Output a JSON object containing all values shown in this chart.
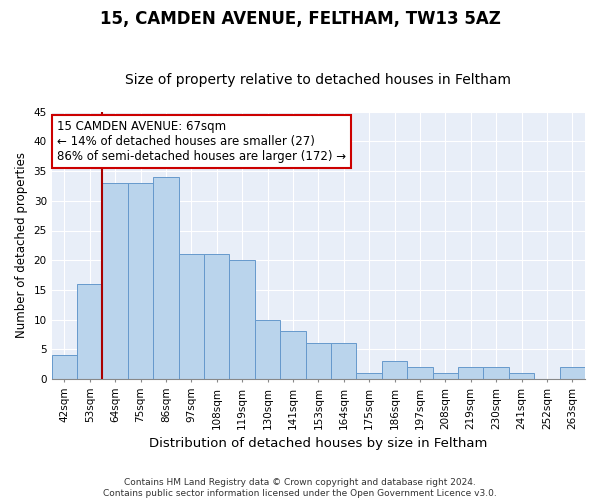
{
  "title": "15, CAMDEN AVENUE, FELTHAM, TW13 5AZ",
  "subtitle": "Size of property relative to detached houses in Feltham",
  "xlabel": "Distribution of detached houses by size in Feltham",
  "ylabel": "Number of detached properties",
  "categories": [
    "42sqm",
    "53sqm",
    "64sqm",
    "75sqm",
    "86sqm",
    "97sqm",
    "108sqm",
    "119sqm",
    "130sqm",
    "141sqm",
    "153sqm",
    "164sqm",
    "175sqm",
    "186sqm",
    "197sqm",
    "208sqm",
    "219sqm",
    "230sqm",
    "241sqm",
    "252sqm",
    "263sqm"
  ],
  "values": [
    4,
    16,
    33,
    33,
    34,
    21,
    21,
    20,
    10,
    8,
    6,
    6,
    1,
    3,
    2,
    1,
    2,
    2,
    1,
    0,
    2
  ],
  "bar_color": "#bad4ec",
  "bar_edge_color": "#6699cc",
  "vline_color": "#aa0000",
  "annotation_text": "15 CAMDEN AVENUE: 67sqm\n← 14% of detached houses are smaller (27)\n86% of semi-detached houses are larger (172) →",
  "annotation_box_color": "#ffffff",
  "annotation_box_edge": "#cc0000",
  "ylim": [
    0,
    45
  ],
  "yticks": [
    0,
    5,
    10,
    15,
    20,
    25,
    30,
    35,
    40,
    45
  ],
  "plot_bg": "#e8eef8",
  "fig_bg": "#ffffff",
  "footnote": "Contains HM Land Registry data © Crown copyright and database right 2024.\nContains public sector information licensed under the Open Government Licence v3.0.",
  "title_fontsize": 12,
  "subtitle_fontsize": 10,
  "xlabel_fontsize": 9.5,
  "ylabel_fontsize": 8.5,
  "tick_fontsize": 7.5,
  "annotation_fontsize": 8.5,
  "footnote_fontsize": 6.5,
  "vline_x_index": 2
}
